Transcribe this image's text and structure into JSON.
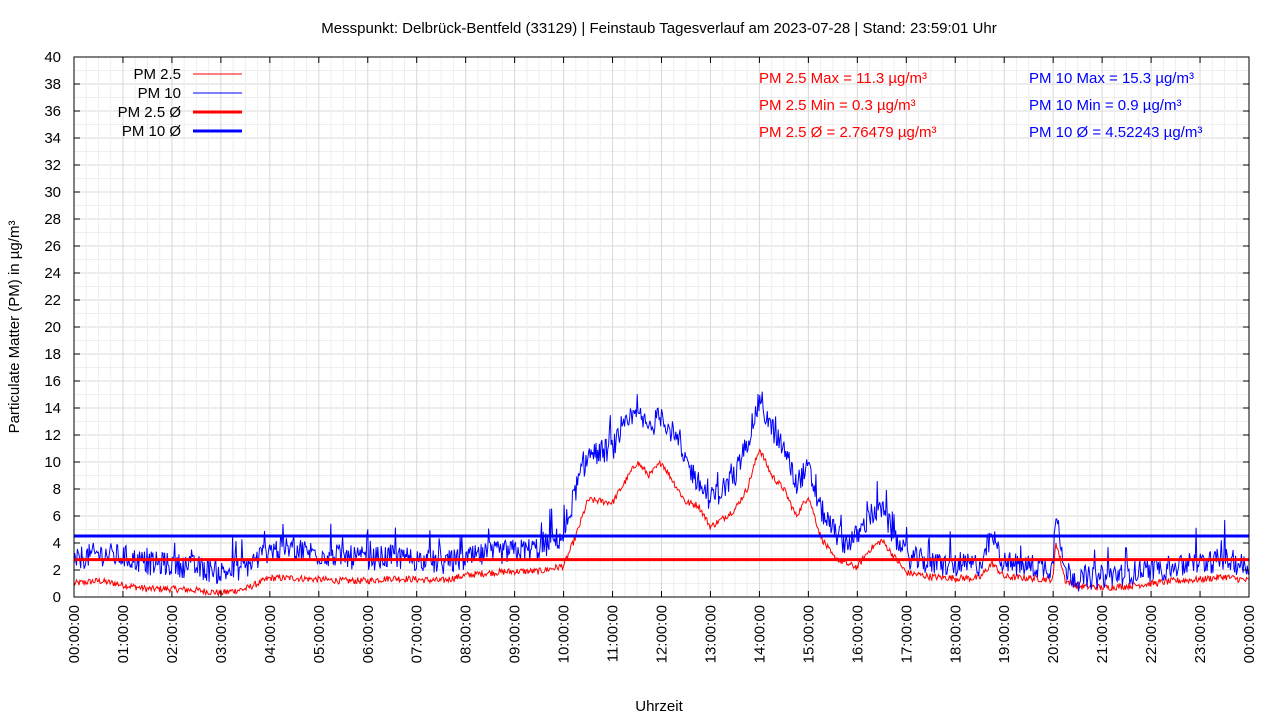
{
  "chart_data": {
    "type": "line",
    "title": "Messpunkt: Delbrück-Bentfeld (33129) | Feinstaub Tagesverlauf am 2023-07-28 | Stand: 23:59:01 Uhr",
    "xlabel": "Uhrzeit",
    "ylabel": "Particulate Matter (PM) in µg/m³",
    "ylim": [
      0,
      40
    ],
    "xlim_hours": [
      0,
      24
    ],
    "y_ticks": [
      "0",
      "2",
      "4",
      "6",
      "8",
      "10",
      "12",
      "14",
      "16",
      "18",
      "20",
      "22",
      "24",
      "26",
      "28",
      "30",
      "32",
      "34",
      "36",
      "38",
      "40"
    ],
    "x_ticks": [
      "00:00:00",
      "01:00:00",
      "02:00:00",
      "03:00:00",
      "04:00:00",
      "05:00:00",
      "06:00:00",
      "07:00:00",
      "08:00:00",
      "09:00:00",
      "10:00:00",
      "11:00:00",
      "12:00:00",
      "13:00:00",
      "14:00:00",
      "15:00:00",
      "16:00:00",
      "17:00:00",
      "18:00:00",
      "19:00:00",
      "20:00:00",
      "21:00:00",
      "22:00:00",
      "23:00:00",
      "00:00:00"
    ],
    "grid": true,
    "legend_position": "top-left",
    "legend": [
      "PM 2.5",
      "PM 10",
      "PM 2.5 Ø",
      "PM 10 Ø"
    ],
    "annotations": {
      "pm25_max": "PM 2.5 Max = 11.3 µg/m³",
      "pm25_min": "PM 2.5 Min = 0.3 µg/m³",
      "pm25_avg": "PM 2.5 Ø = 2.76479 µg/m³",
      "pm10_max": "PM 10 Max = 15.3 µg/m³",
      "pm10_min": "PM 10 Min = 0.9 µg/m³",
      "pm10_avg": "PM 10 Ø = 4.52243 µg/m³"
    },
    "averages": {
      "pm25": 2.76479,
      "pm10": 4.52243
    },
    "series": [
      {
        "name": "PM 2.5",
        "color": "#ff0000",
        "x_hours": [
          0,
          0.5,
          1,
          1.5,
          2,
          2.5,
          3,
          3.5,
          4,
          4.5,
          5,
          5.5,
          6,
          6.5,
          7,
          7.5,
          8,
          8.5,
          9,
          9.5,
          10,
          10.25,
          10.5,
          11,
          11.25,
          11.5,
          11.75,
          12,
          12.25,
          12.5,
          12.75,
          13,
          13.25,
          13.5,
          13.75,
          14,
          14.25,
          14.5,
          14.75,
          15,
          15.25,
          15.5,
          15.75,
          16,
          16.25,
          16.5,
          16.75,
          17,
          17.5,
          18,
          18.5,
          18.75,
          19,
          19.5,
          20,
          20.05,
          20.25,
          20.5,
          21,
          21.5,
          22,
          22.5,
          23,
          23.5,
          24
        ],
        "values": [
          1.0,
          1.2,
          0.9,
          0.6,
          0.6,
          0.5,
          0.3,
          0.6,
          1.4,
          1.4,
          1.3,
          1.2,
          1.2,
          1.4,
          1.3,
          1.2,
          1.6,
          1.8,
          1.9,
          1.9,
          2.3,
          4.5,
          7.2,
          7.0,
          8.5,
          10.0,
          9.0,
          10.0,
          8.5,
          7.0,
          6.8,
          5.2,
          5.8,
          6.5,
          8.0,
          11.0,
          9.0,
          8.0,
          6.0,
          7.5,
          4.5,
          3.0,
          2.5,
          2.2,
          3.5,
          4.2,
          3.0,
          1.8,
          1.5,
          1.4,
          1.4,
          2.5,
          1.5,
          1.4,
          1.3,
          4.2,
          1.2,
          0.8,
          0.7,
          0.8,
          1.0,
          1.2,
          1.3,
          1.5,
          1.2
        ]
      },
      {
        "name": "PM 10",
        "color": "#0000ff",
        "x_hours": [
          0,
          0.5,
          1,
          1.5,
          2,
          2.5,
          3,
          3.5,
          4,
          4.5,
          5,
          5.5,
          6,
          6.5,
          7,
          7.5,
          8,
          8.5,
          9,
          9.5,
          10,
          10.25,
          10.5,
          11,
          11.25,
          11.5,
          11.75,
          12,
          12.25,
          12.5,
          12.75,
          13,
          13.25,
          13.5,
          13.75,
          14,
          14.25,
          14.5,
          14.75,
          15,
          15.25,
          15.5,
          15.75,
          16,
          16.25,
          16.5,
          16.75,
          17,
          17.5,
          18,
          18.5,
          18.75,
          19,
          19.5,
          20,
          20.05,
          20.25,
          20.5,
          21,
          21.5,
          22,
          22.5,
          23,
          23.5,
          24
        ],
        "values": [
          2.8,
          3.2,
          3.0,
          2.5,
          2.4,
          2.2,
          1.8,
          2.2,
          3.5,
          3.6,
          3.2,
          3.0,
          2.8,
          3.0,
          2.8,
          2.5,
          2.8,
          3.2,
          3.4,
          3.6,
          4.5,
          8.0,
          10.5,
          11.0,
          12.5,
          13.5,
          12.5,
          13.5,
          12.0,
          10.0,
          8.5,
          7.2,
          8.0,
          9.0,
          11.5,
          14.5,
          12.5,
          11.0,
          8.5,
          9.5,
          6.5,
          5.0,
          4.0,
          4.5,
          6.0,
          6.5,
          4.5,
          3.0,
          2.5,
          2.3,
          2.4,
          4.5,
          2.5,
          2.3,
          2.2,
          6.5,
          2.0,
          1.3,
          1.5,
          1.8,
          2.0,
          2.2,
          2.5,
          2.8,
          2.2
        ]
      }
    ]
  }
}
